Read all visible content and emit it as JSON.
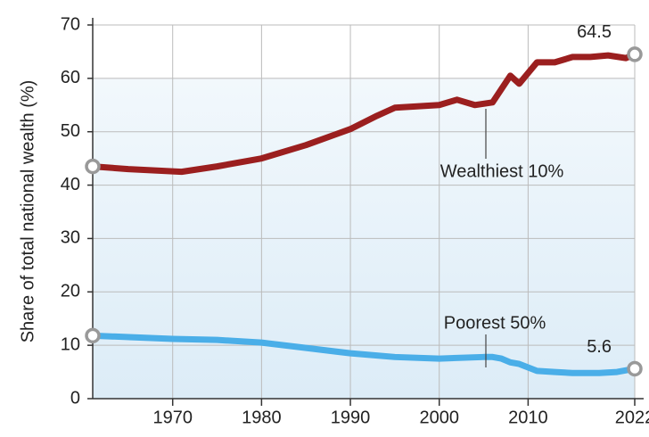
{
  "chart_data": {
    "type": "line",
    "y_label": "Share of total national wealth (%)",
    "xlim": [
      1961,
      2022
    ],
    "xticks": [
      1970,
      1980,
      1990,
      2000,
      2010,
      2022
    ],
    "ylim": [
      0,
      70
    ],
    "yticks": [
      0,
      10,
      20,
      30,
      40,
      50,
      60,
      70
    ],
    "grid": true,
    "series": [
      {
        "name": "Wealthiest 10%",
        "color": "#9b1f1f",
        "x": [
          1961,
          1965,
          1971,
          1975,
          1980,
          1985,
          1990,
          1993,
          1995,
          2000,
          2002,
          2004,
          2006,
          2008,
          2009,
          2011,
          2013,
          2015,
          2017,
          2019,
          2021,
          2022
        ],
        "values": [
          43.5,
          43,
          42.5,
          43.5,
          45,
          47.5,
          50.5,
          53,
          54.5,
          55,
          56,
          55,
          55.5,
          60.5,
          59,
          63,
          63,
          64,
          64,
          64.3,
          63.8,
          64.5
        ],
        "value_labels": [
          null,
          null,
          null,
          null,
          null,
          null,
          null,
          null,
          null,
          null,
          null,
          null,
          null,
          null,
          null,
          null,
          null,
          null,
          null,
          null,
          null,
          "64.5"
        ]
      },
      {
        "name": "Poorest 50%",
        "color": "#4aaee8",
        "x": [
          1961,
          1970,
          1975,
          1980,
          1985,
          1990,
          1995,
          2000,
          2005,
          2006,
          2007,
          2008,
          2009,
          2011,
          2013,
          2015,
          2018,
          2020,
          2022
        ],
        "values": [
          11.8,
          11.2,
          11,
          10.5,
          9.5,
          8.5,
          7.8,
          7.5,
          7.8,
          7.8,
          7.5,
          6.8,
          6.5,
          5.2,
          5,
          4.8,
          4.8,
          5,
          5.6
        ],
        "value_labels": [
          null,
          null,
          null,
          null,
          null,
          null,
          null,
          null,
          null,
          null,
          null,
          null,
          null,
          null,
          null,
          null,
          null,
          null,
          "5.6"
        ]
      }
    ]
  }
}
